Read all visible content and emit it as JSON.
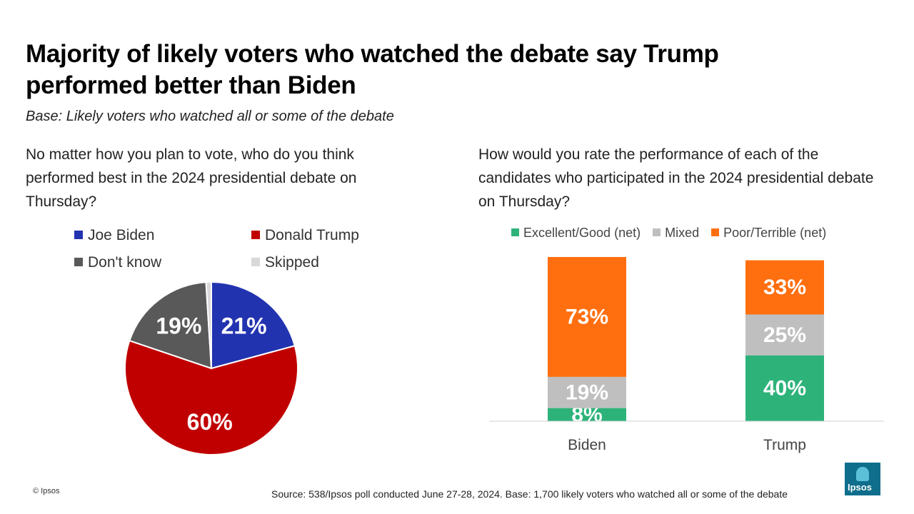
{
  "title": "Majority of likely voters who watched the debate say Trump performed better than Biden",
  "subtitle": "Base: Likely voters who watched all or some of the debate",
  "left_question": "No matter how you plan to vote, who do you think performed best in the 2024 presidential debate on Thursday?",
  "right_question": "How would you rate the performance of each of the candidates who participated in the 2024 presidential debate on Thursday?",
  "chart_data": [
    {
      "type": "pie",
      "slices": [
        {
          "label": "Joe Biden",
          "value": 21,
          "display": "21%",
          "color": "#2233b0"
        },
        {
          "label": "Donald Trump",
          "value": 60,
          "display": "60%",
          "color": "#c00000"
        },
        {
          "label": "Don't know",
          "value": 19,
          "display": "19%",
          "color": "#595959"
        },
        {
          "label": "Skipped",
          "value": 1,
          "display": "",
          "color": "#d9d9d9"
        }
      ]
    },
    {
      "type": "bar",
      "stacked": true,
      "categories": [
        "Biden",
        "Trump"
      ],
      "series": [
        {
          "name": "Excellent/Good (net)",
          "values": [
            8,
            40
          ],
          "labels": [
            "8%",
            "40%"
          ],
          "color": "#2db37a"
        },
        {
          "name": "Mixed",
          "values": [
            19,
            25
          ],
          "labels": [
            "19%",
            "25%"
          ],
          "color": "#bfbfbf"
        },
        {
          "name": "Poor/Terrible (net)",
          "values": [
            73,
            33
          ],
          "labels": [
            "73%",
            "33%"
          ],
          "color": "#ff6f0f"
        }
      ],
      "ylim": [
        0,
        100
      ]
    }
  ],
  "copyright": "© Ipsos",
  "source": "Source: 538/Ipsos poll conducted June 27-28, 2024. Base: 1,700 likely voters who watched all or some of the debate",
  "logo_text": "Ipsos"
}
